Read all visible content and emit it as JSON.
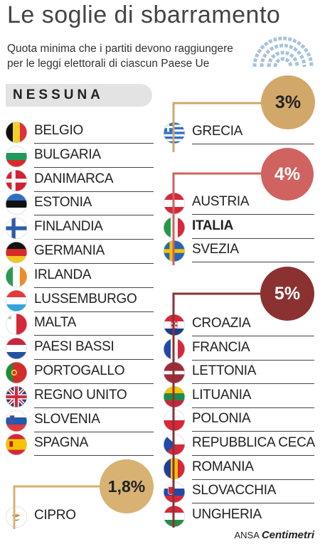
{
  "title": "Le soglie di sbarramento",
  "subtitle": "Quota minima che i partiti devono raggiungere per le leggi elettorali di ciascun Paese Ue",
  "groups": {
    "none": {
      "label": "NESSUNA",
      "countries": [
        "BELGIO",
        "BULGARIA",
        "DANIMARCA",
        "ESTONIA",
        "FINLANDIA",
        "GERMANIA",
        "IRLANDA",
        "LUSSEMBURGO",
        "MALTA",
        "PAESI BASSI",
        "PORTOGALLO",
        "REGNO UNITO",
        "SLOVENIA",
        "SPAGNA"
      ]
    },
    "p3": {
      "label": "3%",
      "countries": [
        "GRECIA"
      ]
    },
    "p4": {
      "label": "4%",
      "countries": [
        "AUSTRIA",
        "ITALIA",
        "SVEZIA"
      ]
    },
    "p5": {
      "label": "5%",
      "countries": [
        "CROAZIA",
        "FRANCIA",
        "LETTONIA",
        "LITUANIA",
        "POLONIA",
        "REPUBBLICA CECA",
        "ROMANIA",
        "SLOVACCHIA",
        "UNGHERIA"
      ]
    },
    "p18": {
      "label": "1,8%",
      "countries": [
        "CIPRO"
      ]
    }
  },
  "colors": {
    "badge_3": "#d2a86a",
    "badge_4": "#d0625f",
    "badge_5": "#8b3131",
    "badge_18": "#d8b272",
    "none_bar": "#e3e3e3"
  },
  "footer": {
    "source": "ANSA",
    "brand": "Centimetri"
  }
}
